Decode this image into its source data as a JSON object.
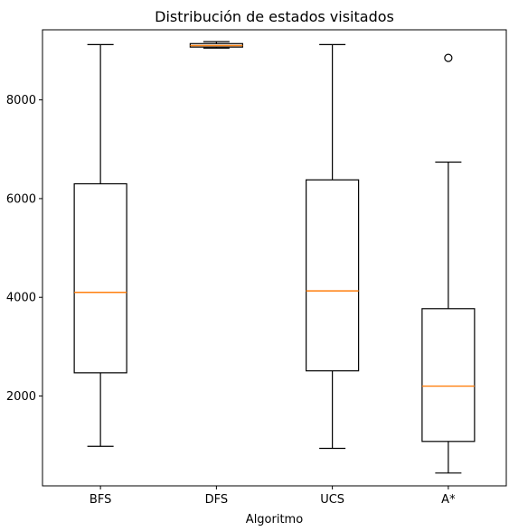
{
  "chart_data": {
    "type": "box",
    "title": "Distribución de estados visitados",
    "xlabel": "Algoritmo",
    "ylabel": "",
    "ylim": [
      180,
      9420
    ],
    "yticks": [
      2000,
      4000,
      6000,
      8000
    ],
    "categories": [
      "BFS",
      "DFS",
      "UCS",
      "A*"
    ],
    "boxes": [
      {
        "category": "BFS",
        "whisker_low": 980,
        "q1": 2470,
        "median": 4100,
        "q3": 6300,
        "whisker_high": 9120,
        "outliers": []
      },
      {
        "category": "DFS",
        "whisker_low": 9050,
        "q1": 9070,
        "median": 9100,
        "q3": 9140,
        "whisker_high": 9180,
        "outliers": []
      },
      {
        "category": "UCS",
        "whisker_low": 940,
        "q1": 2510,
        "median": 4130,
        "q3": 6380,
        "whisker_high": 9120,
        "outliers": []
      },
      {
        "category": "A*",
        "whisker_low": 440,
        "q1": 1080,
        "median": 2200,
        "q3": 3770,
        "whisker_high": 6740,
        "outliers": [
          8850
        ]
      }
    ],
    "grid": false,
    "colors": {
      "box": "#000000",
      "median": "#ff7f0e",
      "outlier": "#000000"
    }
  }
}
